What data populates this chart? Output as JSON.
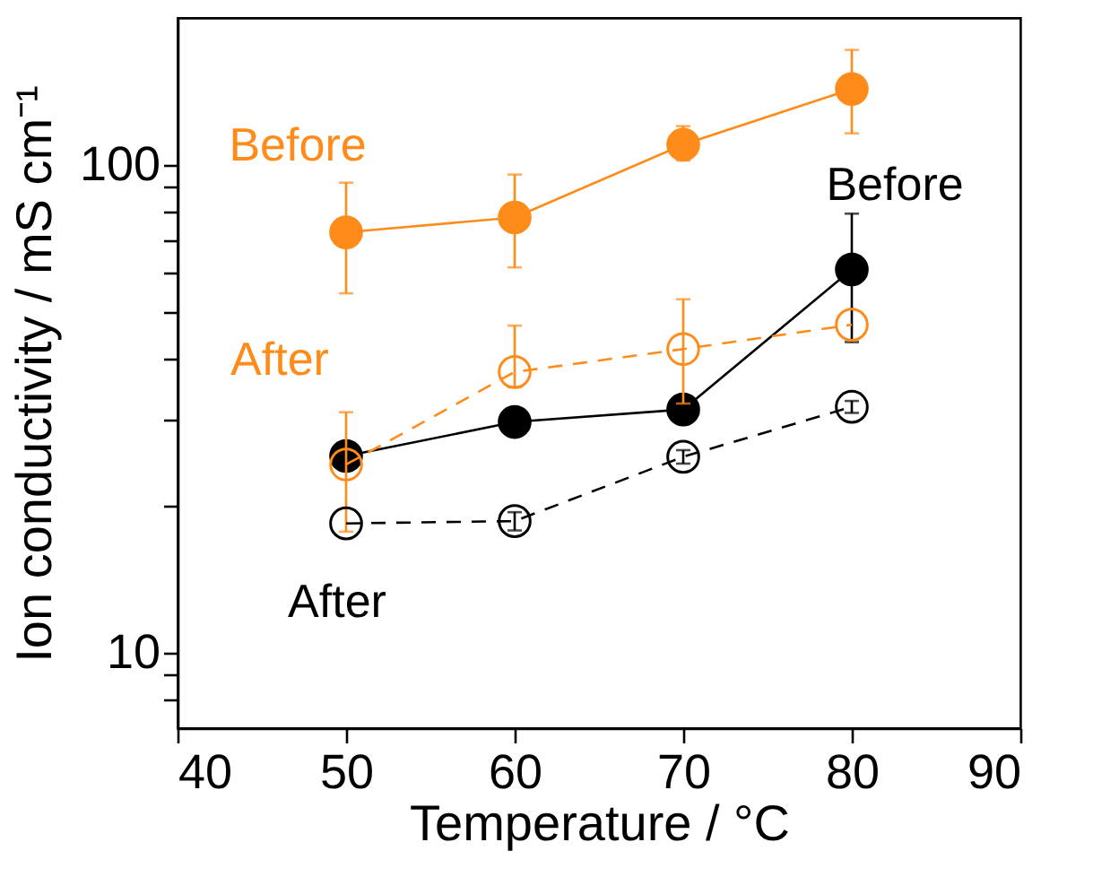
{
  "chart_data": {
    "type": "line",
    "xlabel": "Temperature / °C",
    "ylabel": "Ion conductivity / mS cm⁻¹",
    "x": [
      50,
      60,
      70,
      80
    ],
    "series": [
      {
        "name": "Before",
        "color": "#ff8c1a",
        "values": [
          72.7,
          78,
          110,
          143
        ],
        "errors": [
          [
            54.5,
            91.9
          ],
          [
            61.6,
            95.5
          ],
          [
            102,
            120
          ],
          [
            116,
            172
          ]
        ],
        "line_style": "solid",
        "marker": "circle"
      },
      {
        "name": "Before",
        "color": "#000000",
        "values": [
          25.3,
          29.7,
          31.5,
          61
        ],
        "errors": [
          null,
          null,
          null,
          [
            43.3,
            79.4
          ]
        ],
        "line_style": "solid",
        "marker": "circle"
      },
      {
        "name": "After",
        "color": "#ff8c1a",
        "values": [
          24.3,
          37.6,
          41.9,
          47
        ],
        "errors": [
          [
            17.7,
            31.1
          ],
          [
            35,
            46.8
          ],
          [
            32.4,
            53
          ],
          null
        ],
        "line_style": "dashed",
        "marker": "circle"
      },
      {
        "name": "After",
        "color": "#000000",
        "values": [
          18.4,
          18.6,
          25.2,
          31.9
        ],
        "errors": [
          null,
          [
            17.8,
            19.4
          ],
          [
            24.4,
            26
          ],
          [
            31,
            32.8
          ]
        ],
        "line_style": "dashed",
        "marker": "circle"
      }
    ],
    "log": "y",
    "xlim": [
      40,
      90
    ],
    "xticks": [
      40,
      50,
      60,
      70,
      80,
      90
    ],
    "ylim": [
      7,
      200
    ],
    "yticks": [
      {
        "value": 8,
        "label": null
      },
      {
        "value": 9,
        "label": null
      },
      10,
      {
        "value": 20,
        "label": null
      },
      {
        "value": 30,
        "label": null
      },
      {
        "value": 40,
        "label": null
      },
      {
        "value": 50,
        "label": null
      },
      {
        "value": 60,
        "label": null
      },
      {
        "value": 70,
        "label": null
      },
      {
        "value": 80,
        "label": null
      },
      {
        "value": 90,
        "label": null
      },
      100
    ]
  }
}
